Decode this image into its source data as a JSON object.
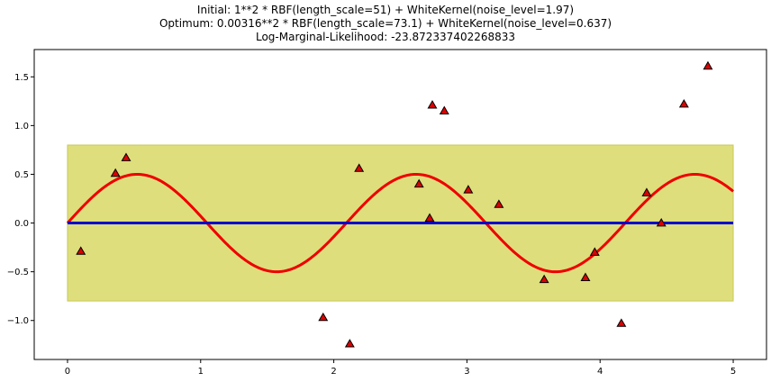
{
  "title_lines": [
    "Initial: 1**2 * RBF(length_scale=51) + WhiteKernel(noise_level=1.97)",
    "Optimum: 0.00316**2 * RBF(length_scale=73.1) + WhiteKernel(noise_level=0.637)",
    "Log-Marginal-Likelihood: -23.872337402268833"
  ],
  "chart_data": {
    "type": "line",
    "title": "Initial: 1**2 * RBF(length_scale=51) + WhiteKernel(noise_level=1.97)\nOptimum: 0.00316**2 * RBF(length_scale=73.1) + WhiteKernel(noise_level=0.637)\nLog-Marginal-Likelihood: -23.872337402268833",
    "xlabel": "",
    "ylabel": "",
    "xlim": [
      -0.25,
      5.25
    ],
    "ylim": [
      -1.4,
      1.78
    ],
    "xticks": [
      0,
      1,
      2,
      3,
      4,
      5
    ],
    "yticks": [
      -1.0,
      -0.5,
      0.0,
      0.5,
      1.0,
      1.5
    ],
    "xtick_labels": [
      "0",
      "1",
      "2",
      "3",
      "4",
      "5"
    ],
    "ytick_labels": [
      "−1.0",
      "−0.5",
      "0.0",
      "0.5",
      "1.0",
      "1.5"
    ],
    "grid": false,
    "series": [
      {
        "kind": "band",
        "x": [
          0,
          5
        ],
        "lower": [
          -0.8,
          -0.8
        ],
        "upper": [
          0.8,
          0.8
        ],
        "color": "#dede7c",
        "edge_color": "#c9c95a"
      },
      {
        "kind": "line",
        "function": "0.5*sin(3x)",
        "amplitude": 0.5,
        "frequency": 3,
        "x_range": [
          0,
          5
        ],
        "color": "#ee0000"
      },
      {
        "kind": "line",
        "x": [
          0,
          5
        ],
        "y": [
          0,
          0
        ],
        "color": "#0000cc"
      },
      {
        "kind": "scatter",
        "marker": "triangle-up",
        "color": "#dd0000",
        "edge_color": "#000000",
        "points": [
          {
            "x": 0.1,
            "y": -0.29
          },
          {
            "x": 0.36,
            "y": 0.51
          },
          {
            "x": 0.44,
            "y": 0.67
          },
          {
            "x": 1.92,
            "y": -0.97
          },
          {
            "x": 2.12,
            "y": -1.24
          },
          {
            "x": 2.19,
            "y": 0.56
          },
          {
            "x": 2.64,
            "y": 0.4
          },
          {
            "x": 2.72,
            "y": 0.05
          },
          {
            "x": 2.74,
            "y": 1.21
          },
          {
            "x": 2.83,
            "y": 1.15
          },
          {
            "x": 3.01,
            "y": 0.34
          },
          {
            "x": 3.24,
            "y": 0.19
          },
          {
            "x": 3.58,
            "y": -0.58
          },
          {
            "x": 3.89,
            "y": -0.56
          },
          {
            "x": 3.96,
            "y": -0.3
          },
          {
            "x": 4.16,
            "y": -1.03
          },
          {
            "x": 4.35,
            "y": 0.31
          },
          {
            "x": 4.46,
            "y": 0.0
          },
          {
            "x": 4.63,
            "y": 1.22
          },
          {
            "x": 4.81,
            "y": 1.61
          }
        ]
      }
    ]
  }
}
